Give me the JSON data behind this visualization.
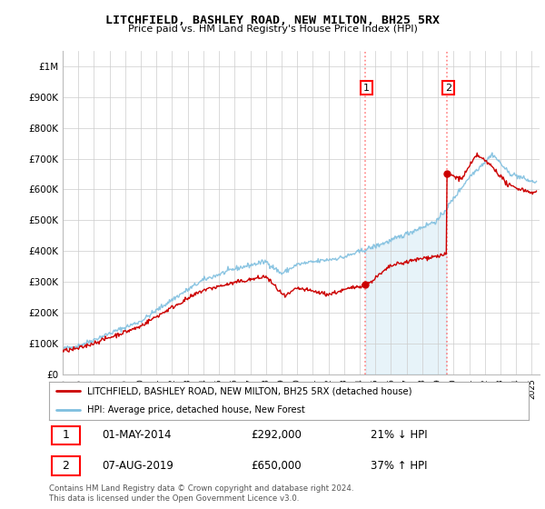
{
  "title": "LITCHFIELD, BASHLEY ROAD, NEW MILTON, BH25 5RX",
  "subtitle": "Price paid vs. HM Land Registry's House Price Index (HPI)",
  "ylim": [
    0,
    1050000
  ],
  "xlim_start": 1995.0,
  "xlim_end": 2025.5,
  "sale1_date": 2014.33,
  "sale1_price": 292000,
  "sale2_date": 2019.58,
  "sale2_price": 650000,
  "hpi_color": "#7fbfdf",
  "price_color": "#cc0000",
  "legend_label1": "LITCHFIELD, BASHLEY ROAD, NEW MILTON, BH25 5RX (detached house)",
  "legend_label2": "HPI: Average price, detached house, New Forest",
  "annotation1_date": "01-MAY-2014",
  "annotation1_price": "£292,000",
  "annotation1_hpi": "21% ↓ HPI",
  "annotation2_date": "07-AUG-2019",
  "annotation2_price": "£650,000",
  "annotation2_hpi": "37% ↑ HPI",
  "footer": "Contains HM Land Registry data © Crown copyright and database right 2024.\nThis data is licensed under the Open Government Licence v3.0.",
  "background_color": "#ffffff",
  "grid_color": "#cccccc",
  "yticks": [
    0,
    100000,
    200000,
    300000,
    400000,
    500000,
    600000,
    700000,
    800000,
    900000,
    1000000
  ],
  "ylabels": [
    "£0",
    "£100K",
    "£200K",
    "£300K",
    "£400K",
    "£500K",
    "£600K",
    "£700K",
    "£800K",
    "£900K",
    "£1M"
  ]
}
